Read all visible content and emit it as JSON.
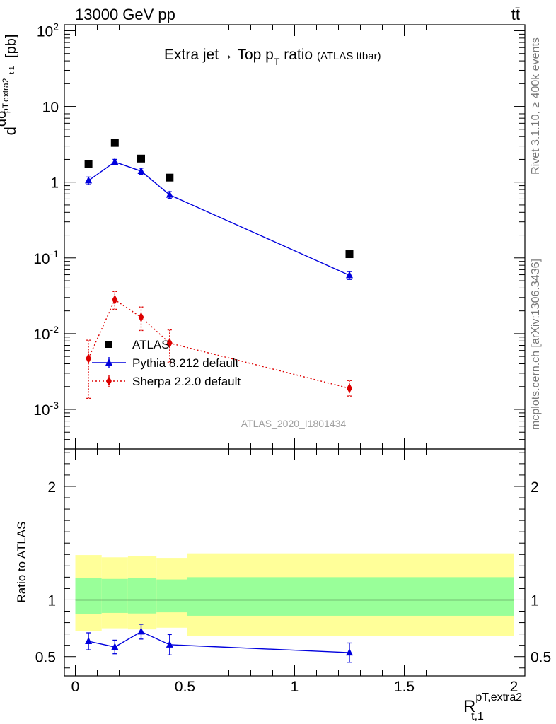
{
  "header": {
    "left": "13000 GeV pp",
    "right": "tt̄"
  },
  "side_labels": {
    "rivet": "Rivet 3.1.10, ≥ 400k events",
    "mcplots": "mcplots.cern.ch [arXiv:1306.3436]"
  },
  "chart_data": [
    {
      "type": "scatter",
      "panel": "main",
      "title": "Extra jet→ Top p_T ratio",
      "title_main": "Extra jet→ Top p",
      "title_sub": "T",
      "title_tail": " ratio",
      "title_note": "(ATLAS ttbar)",
      "ylabel": "dσ^fid/dR^{pT,extra2}_{t,1} [pb]",
      "yscale": "log",
      "ylim": [
        0.0003,
        120
      ],
      "xlim": [
        -0.05,
        2.05
      ],
      "ytick_labels": [
        "10^-3",
        "10^-2",
        "10^-1",
        "1",
        "10",
        "10^2"
      ],
      "analysis_id": "ATLAS_2020_I1801434",
      "legend_position": "lower-left",
      "series": [
        {
          "name": "ATLAS",
          "color": "#000000",
          "marker": "square",
          "x": [
            0.06,
            0.18,
            0.3,
            0.43,
            1.25
          ],
          "y": [
            1.75,
            3.3,
            2.05,
            1.15,
            0.112
          ]
        },
        {
          "name": "Pythia 8.212 default",
          "color": "#0000dd",
          "marker": "triangle",
          "line": "solid",
          "x": [
            0.06,
            0.18,
            0.3,
            0.43,
            1.25
          ],
          "y": [
            1.05,
            1.85,
            1.4,
            0.68,
            0.059
          ],
          "yerr": [
            0.12,
            0.15,
            0.13,
            0.07,
            0.007
          ]
        },
        {
          "name": "Sherpa 2.2.0 default",
          "color": "#dd0000",
          "marker": "diamond",
          "line": "dotted",
          "x": [
            0.06,
            0.18,
            0.3,
            0.43,
            1.25
          ],
          "y": [
            0.0047,
            0.028,
            0.0165,
            0.0075,
            0.0019
          ],
          "ylo": [
            0.0014,
            0.021,
            0.011,
            0.0042,
            0.0015
          ],
          "yhi": [
            0.0082,
            0.036,
            0.0225,
            0.0112,
            0.0024
          ]
        }
      ]
    },
    {
      "type": "scatter",
      "panel": "ratio",
      "ylabel": "Ratio to ATLAS",
      "xlabel": "R^{pT,extra2}_{t,1}",
      "xlabel_main": "R",
      "xlabel_sup": "pT,extra2",
      "xlabel_sub": "t,1",
      "ylim": [
        0.33,
        2.33
      ],
      "xlim": [
        -0.05,
        2.05
      ],
      "yticks": [
        0.5,
        1,
        2
      ],
      "ytick_labels": [
        "0.5",
        "1",
        "2"
      ],
      "xticks": [
        0,
        0.5,
        1,
        1.5,
        2
      ],
      "xtick_labels": [
        "0",
        "0.5",
        "1",
        "1.5",
        "2"
      ],
      "bands": {
        "edges": [
          0.0,
          0.12,
          0.24,
          0.37,
          0.51,
          2.0
        ],
        "outer_lo": [
          0.725,
          0.75,
          0.74,
          0.755,
          0.68
        ],
        "outer_hi": [
          1.395,
          1.375,
          1.385,
          1.37,
          1.41
        ],
        "inner_lo": [
          0.875,
          0.885,
          0.88,
          0.89,
          0.86
        ],
        "inner_hi": [
          1.195,
          1.185,
          1.19,
          1.18,
          1.2
        ],
        "outer_color": "#ffff99",
        "inner_color": "#99ff99"
      },
      "series": [
        {
          "name": "Pythia 8.212 default",
          "color": "#0000dd",
          "marker": "triangle",
          "line": "solid",
          "x": [
            0.06,
            0.18,
            0.3,
            0.43,
            1.25
          ],
          "y": [
            0.635,
            0.585,
            0.72,
            0.605,
            0.535
          ],
          "yerr": [
            0.075,
            0.06,
            0.065,
            0.09,
            0.085
          ]
        }
      ]
    }
  ]
}
